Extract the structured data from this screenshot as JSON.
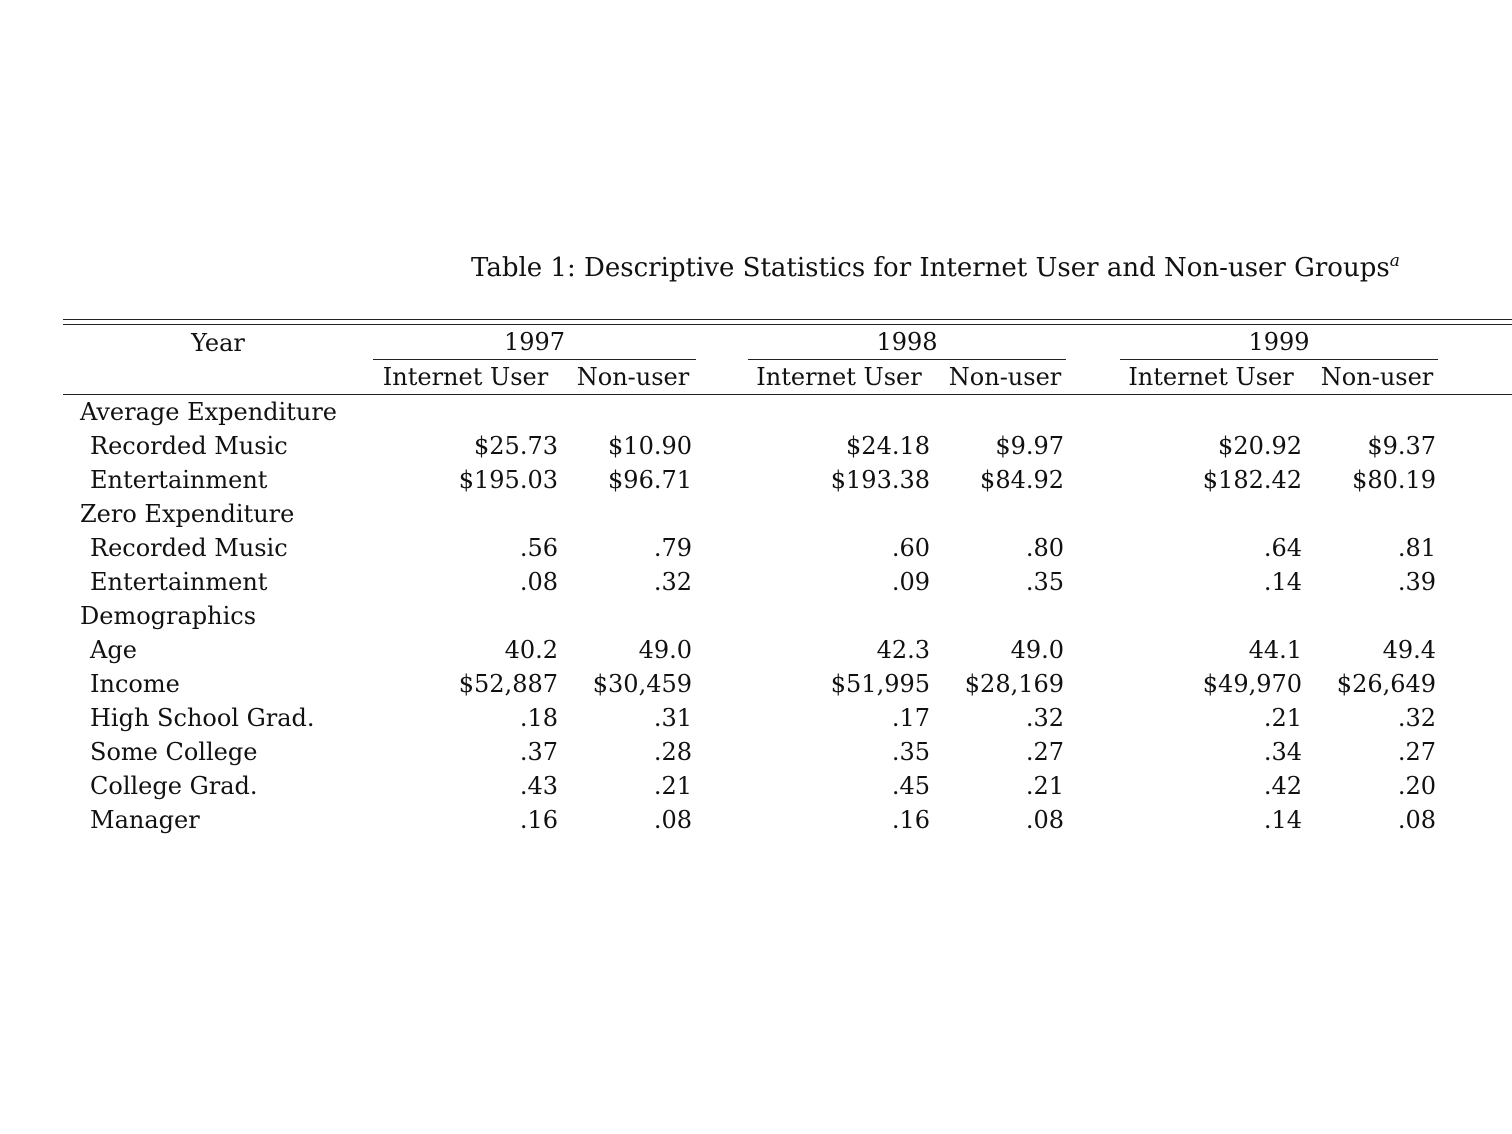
{
  "caption": {
    "text": "Table 1: Descriptive Statistics for Internet User and Non-user Groups",
    "footnote_mark": "a"
  },
  "table": {
    "year_header": "Year",
    "years": [
      "1997",
      "1998",
      "1999"
    ],
    "subheaders": [
      "Internet User",
      "Non-user",
      "Internet User",
      "Non-user",
      "Internet User",
      "Non-user"
    ],
    "sections": [
      {
        "title": "Average Expenditure",
        "rows": [
          {
            "label": "Recorded Music",
            "values": [
              "$25.73",
              "$10.90",
              "$24.18",
              "$9.97",
              "$20.92",
              "$9.37"
            ]
          },
          {
            "label": "Entertainment",
            "values": [
              "$195.03",
              "$96.71",
              "$193.38",
              "$84.92",
              "$182.42",
              "$80.19"
            ]
          }
        ]
      },
      {
        "title": "Zero Expenditure",
        "rows": [
          {
            "label": "Recorded Music",
            "values": [
              ".56",
              ".79",
              ".60",
              ".80",
              ".64",
              ".81"
            ]
          },
          {
            "label": "Entertainment",
            "values": [
              ".08",
              ".32",
              ".09",
              ".35",
              ".14",
              ".39"
            ]
          }
        ]
      },
      {
        "title": "Demographics",
        "rows": [
          {
            "label": "Age",
            "values": [
              "40.2",
              "49.0",
              "42.3",
              "49.0",
              "44.1",
              "49.4"
            ]
          },
          {
            "label": "Income",
            "values": [
              "$52,887",
              "$30,459",
              "$51,995",
              "$28,169",
              "$49,970",
              "$26,649"
            ]
          },
          {
            "label": "High School Grad.",
            "values": [
              ".18",
              ".31",
              ".17",
              ".32",
              ".21",
              ".32"
            ]
          },
          {
            "label": "Some College",
            "values": [
              ".37",
              ".28",
              ".35",
              ".27",
              ".34",
              ".27"
            ]
          },
          {
            "label": "College Grad.",
            "values": [
              ".43",
              ".21",
              ".45",
              ".21",
              ".42",
              ".20"
            ]
          },
          {
            "label": "Manager",
            "values": [
              ".16",
              ".08",
              ".16",
              ".08",
              ".14",
              ".08"
            ]
          }
        ]
      }
    ]
  }
}
